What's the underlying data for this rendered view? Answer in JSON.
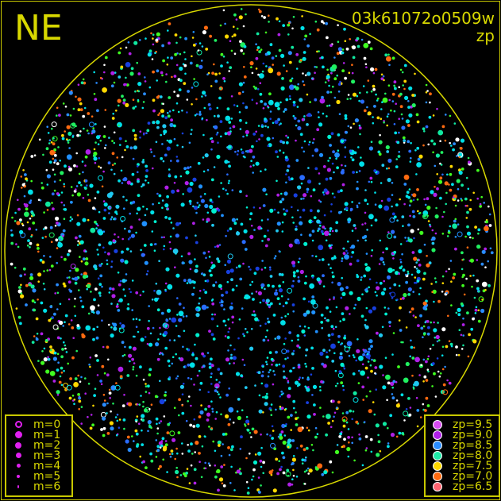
{
  "header": {
    "direction": "NE",
    "frame_id": "03k61072o0509w",
    "color_by": "zp"
  },
  "colors": {
    "frame": "#c8c800",
    "horizon_circle": "#d8d800",
    "text": "#d8d800"
  },
  "chart_data": {
    "type": "scatter",
    "projection": "all-sky polar",
    "size_legend": {
      "title": "m",
      "entries": [
        {
          "label": "m=0",
          "value": 0,
          "style": "open"
        },
        {
          "label": "m=1",
          "value": 1
        },
        {
          "label": "m=2",
          "value": 2
        },
        {
          "label": "m=3",
          "value": 3
        },
        {
          "label": "m=4",
          "value": 4
        },
        {
          "label": "m=5",
          "value": 5
        },
        {
          "label": "m=6",
          "value": 6
        }
      ]
    },
    "color_legend": {
      "title": "zp",
      "entries": [
        {
          "label": "zp=9.5",
          "value": 9.5,
          "color": "#d84cf0"
        },
        {
          "label": "zp=9.0",
          "value": 9.0,
          "color": "#b020e8"
        },
        {
          "label": "zp=8.5",
          "value": 8.5,
          "color": "#2a8cff"
        },
        {
          "label": "zp=8.0",
          "value": 8.0,
          "color": "#20e8a8"
        },
        {
          "label": "zp=7.5",
          "value": 7.5,
          "color": "#ffd800"
        },
        {
          "label": "zp=7.0",
          "value": 7.0,
          "color": "#ff6a10"
        },
        {
          "label": "zp=6.5",
          "value": 6.5,
          "color": "#ff6470"
        }
      ]
    },
    "legend_placement": {
      "size": "bottom-left",
      "color": "bottom-right"
    }
  }
}
